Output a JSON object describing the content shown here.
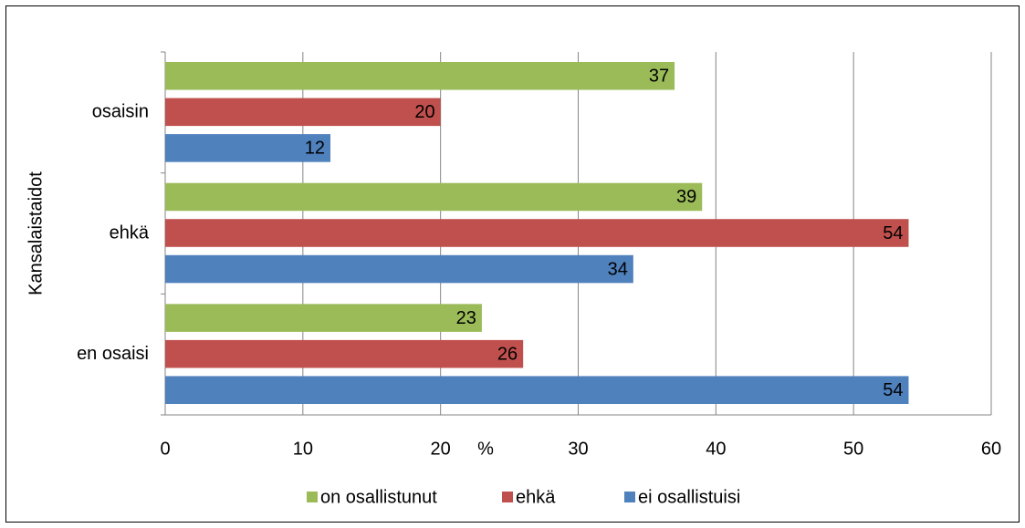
{
  "chart_data": {
    "type": "bar",
    "orientation": "horizontal",
    "y_axis_title": "Kansalaistaidot",
    "x_axis_title": "%",
    "categories": [
      "osaisin",
      "ehkä",
      "en osaisi"
    ],
    "series": [
      {
        "name": "on osallistunut",
        "color": "#9bbb59",
        "values": [
          37,
          39,
          23
        ]
      },
      {
        "name": "ehkä",
        "color": "#c0504d",
        "values": [
          20,
          54,
          26
        ]
      },
      {
        "name": "ei osallistuisi",
        "color": "#4f81bd",
        "values": [
          12,
          34,
          54
        ]
      }
    ],
    "xlim": [
      0,
      60
    ],
    "xticks": [
      0,
      10,
      20,
      30,
      40,
      50,
      60
    ],
    "grid": true,
    "legend": "bottom"
  }
}
